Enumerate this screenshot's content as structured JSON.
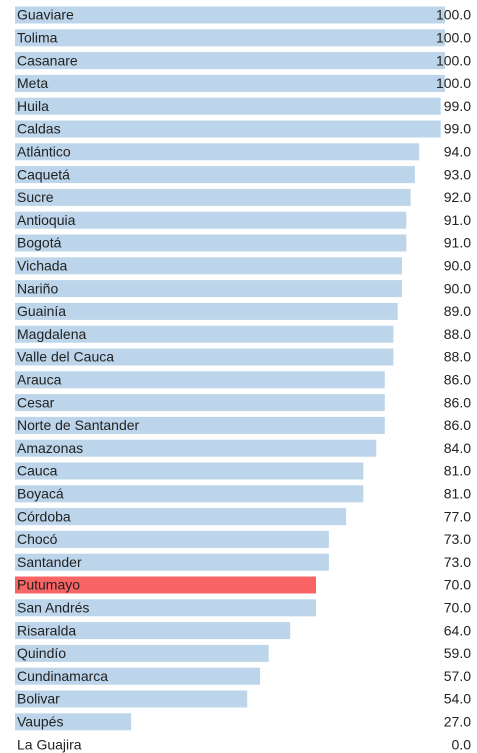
{
  "chart_data": {
    "type": "hbar",
    "categories": [
      "Guaviare",
      "Tolima",
      "Casanare",
      "Meta",
      "Huila",
      "Caldas",
      "Atlántico",
      "Caquetá",
      "Sucre",
      "Antioquia",
      "Bogotá",
      "Vichada",
      "Nariño",
      "Guainía",
      "Magdalena",
      "Valle del Cauca",
      "Arauca",
      "Cesar",
      "Norte de Santander",
      "Amazonas",
      "Cauca",
      "Boyacá",
      "Córdoba",
      "Chocó",
      "Santander",
      "Putumayo",
      "San Andrés",
      "Risaralda",
      "Quindío",
      "Cundinamarca",
      "Bolivar",
      "Vaupés",
      "La Guajira"
    ],
    "values": [
      100,
      100,
      100,
      100,
      99,
      99,
      94,
      93,
      92,
      91,
      91,
      90,
      90,
      89,
      88,
      88,
      86,
      86,
      86,
      84,
      81,
      81,
      77,
      73,
      73,
      70,
      70,
      64,
      59,
      57,
      54,
      27,
      0
    ],
    "value_labels": [
      "100.0",
      "100.0",
      "100.0",
      "100.0",
      "99.0",
      "99.0",
      "94.0",
      "93.0",
      "92.0",
      "91.0",
      "91.0",
      "90.0",
      "90.0",
      "89.0",
      "88.0",
      "88.0",
      "86.0",
      "86.0",
      "86.0",
      "84.0",
      "81.0",
      "81.0",
      "77.0",
      "73.0",
      "73.0",
      "70.0",
      "70.0",
      "64.0",
      "59.0",
      "57.0",
      "54.0",
      "27.0",
      "0.0"
    ],
    "colors": [
      "#bcd5ea",
      "#bcd5ea",
      "#bcd5ea",
      "#bcd5ea",
      "#bcd5ea",
      "#bcd5ea",
      "#bcd5ea",
      "#bcd5ea",
      "#bcd5ea",
      "#bcd5ea",
      "#bcd5ea",
      "#bcd5ea",
      "#bcd5ea",
      "#bcd5ea",
      "#bcd5ea",
      "#bcd5ea",
      "#bcd5ea",
      "#bcd5ea",
      "#bcd5ea",
      "#bcd5ea",
      "#bcd5ea",
      "#bcd5ea",
      "#bcd5ea",
      "#bcd5ea",
      "#bcd5ea",
      "#f96464",
      "#bcd5ea",
      "#bcd5ea",
      "#bcd5ea",
      "#bcd5ea",
      "#bcd5ea",
      "#bcd5ea",
      "#bcd5ea"
    ],
    "xlim": [
      0,
      100
    ]
  }
}
